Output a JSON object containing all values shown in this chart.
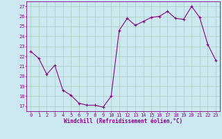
{
  "x": [
    0,
    1,
    2,
    3,
    4,
    5,
    6,
    7,
    8,
    9,
    10,
    11,
    12,
    13,
    14,
    15,
    16,
    17,
    18,
    19,
    20,
    21,
    22,
    23
  ],
  "y": [
    22.5,
    21.8,
    20.2,
    21.1,
    18.6,
    18.1,
    17.3,
    17.1,
    17.1,
    16.9,
    18.0,
    24.6,
    25.8,
    25.1,
    25.5,
    25.9,
    26.0,
    26.5,
    25.8,
    25.7,
    27.0,
    25.9,
    23.2,
    21.6
  ],
  "line_color": "#880088",
  "marker_color": "#880088",
  "bg_color": "#cce8f0",
  "grid_color": "#aaccbb",
  "xlabel": "Windchill (Refroidissement éolien,°C)",
  "ylabel_ticks": [
    17,
    18,
    19,
    20,
    21,
    22,
    23,
    24,
    25,
    26,
    27
  ],
  "xtick_labels": [
    "0",
    "1",
    "2",
    "3",
    "4",
    "5",
    "6",
    "7",
    "8",
    "9",
    "10",
    "11",
    "12",
    "13",
    "14",
    "15",
    "16",
    "17",
    "18",
    "19",
    "20",
    "21",
    "22",
    "23"
  ],
  "ylim": [
    16.5,
    27.5
  ],
  "xlim": [
    -0.5,
    23.5
  ],
  "font_color": "#880088",
  "font_size_label": 5.5,
  "font_size_tick": 5.0
}
